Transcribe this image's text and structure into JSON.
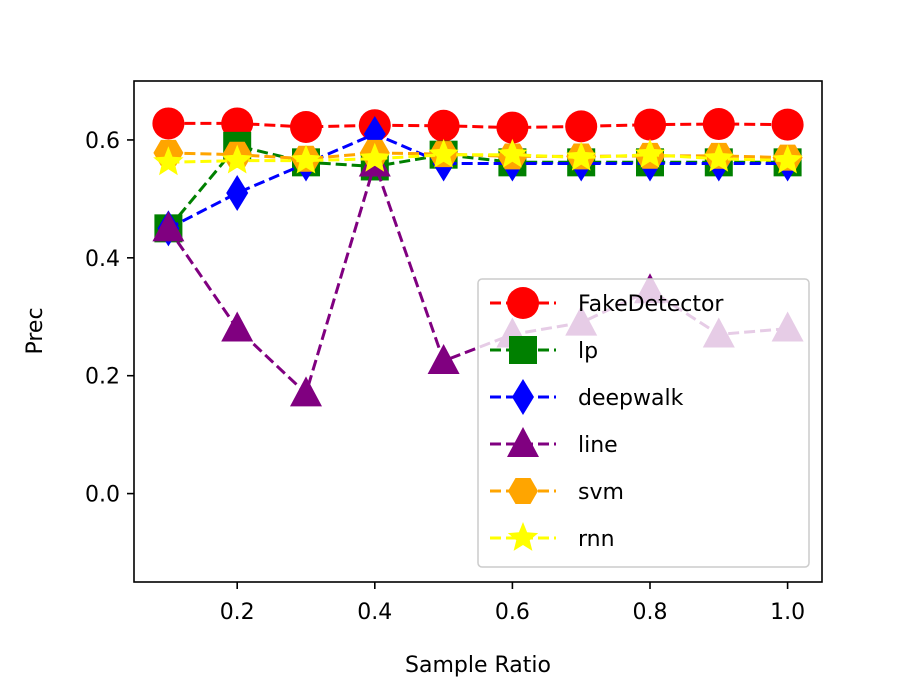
{
  "chart_data": {
    "type": "line",
    "title": "",
    "xlabel": "Sample Ratio",
    "ylabel": "Prec",
    "xlim": [
      0.05,
      1.05
    ],
    "ylim": [
      -0.15,
      0.7
    ],
    "xticks": [
      0.2,
      0.4,
      0.6,
      0.8,
      1.0
    ],
    "xtick_labels": [
      "0.2",
      "0.4",
      "0.6",
      "0.8",
      "1.0"
    ],
    "yticks": [
      0.0,
      0.2,
      0.4,
      0.6
    ],
    "ytick_labels": [
      "0.0",
      "0.2",
      "0.4",
      "0.6"
    ],
    "grid": false,
    "legend_position": "center-right",
    "x": [
      0.1,
      0.2,
      0.3,
      0.4,
      0.5,
      0.6,
      0.7,
      0.8,
      0.9,
      1.0
    ],
    "series": [
      {
        "name": "FakeDetector",
        "color": "#ff0000",
        "marker": "circle",
        "values": [
          0.628,
          0.628,
          0.622,
          0.625,
          0.624,
          0.621,
          0.623,
          0.626,
          0.627,
          0.626
        ]
      },
      {
        "name": "lp",
        "color": "#008000",
        "marker": "square",
        "values": [
          0.45,
          0.59,
          0.562,
          0.555,
          0.575,
          0.562,
          0.562,
          0.562,
          0.562,
          0.562
        ]
      },
      {
        "name": "deepwalk",
        "color": "#0000ff",
        "marker": "diamond",
        "values": [
          0.45,
          0.51,
          0.56,
          0.61,
          0.56,
          0.56,
          0.56,
          0.56,
          0.56,
          0.56
        ]
      },
      {
        "name": "line",
        "color": "#800080",
        "marker": "triangle",
        "values": [
          0.45,
          0.28,
          0.17,
          0.56,
          0.225,
          0.27,
          0.29,
          0.345,
          0.27,
          0.28
        ]
      },
      {
        "name": "svm",
        "color": "#ffa500",
        "marker": "hexagon",
        "values": [
          0.578,
          0.575,
          0.568,
          0.578,
          0.576,
          0.572,
          0.572,
          0.573,
          0.573,
          0.57
        ]
      },
      {
        "name": "rnn",
        "color": "#ffff00",
        "marker": "star",
        "values": [
          0.562,
          0.565,
          0.565,
          0.568,
          0.575,
          0.575,
          0.57,
          0.575,
          0.568,
          0.565
        ]
      }
    ]
  }
}
